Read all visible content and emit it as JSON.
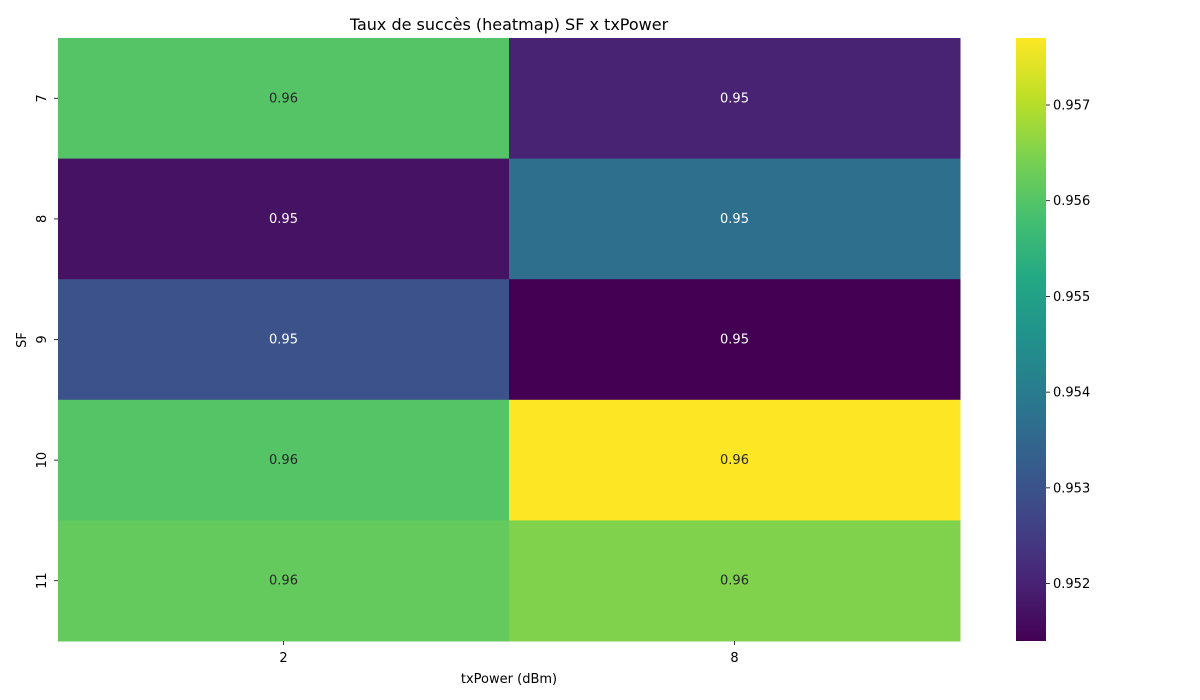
{
  "chart_data": {
    "type": "heatmap",
    "title": "Taux de succès (heatmap) SF x txPower",
    "xlabel": "txPower (dBm)",
    "ylabel": "SF",
    "x_categories": [
      "2",
      "8"
    ],
    "y_categories": [
      "7",
      "8",
      "9",
      "10",
      "11"
    ],
    "values": [
      [
        0.956,
        0.952
      ],
      [
        0.9517,
        0.9537
      ],
      [
        0.953,
        0.9514
      ],
      [
        0.956,
        0.9577
      ],
      [
        0.9562,
        0.9565
      ]
    ],
    "cell_labels": [
      [
        "0.96",
        "0.95"
      ],
      [
        "0.95",
        "0.95"
      ],
      [
        "0.95",
        "0.95"
      ],
      [
        "0.96",
        "0.96"
      ],
      [
        "0.96",
        "0.96"
      ]
    ],
    "colormap": "viridis",
    "colorbar": {
      "min": 0.9514,
      "max": 0.9577,
      "ticks": [
        0.952,
        0.953,
        0.954,
        0.955,
        0.956,
        0.957
      ],
      "tick_labels": [
        "0.952",
        "0.953",
        "0.954",
        "0.955",
        "0.956",
        "0.957"
      ]
    }
  }
}
